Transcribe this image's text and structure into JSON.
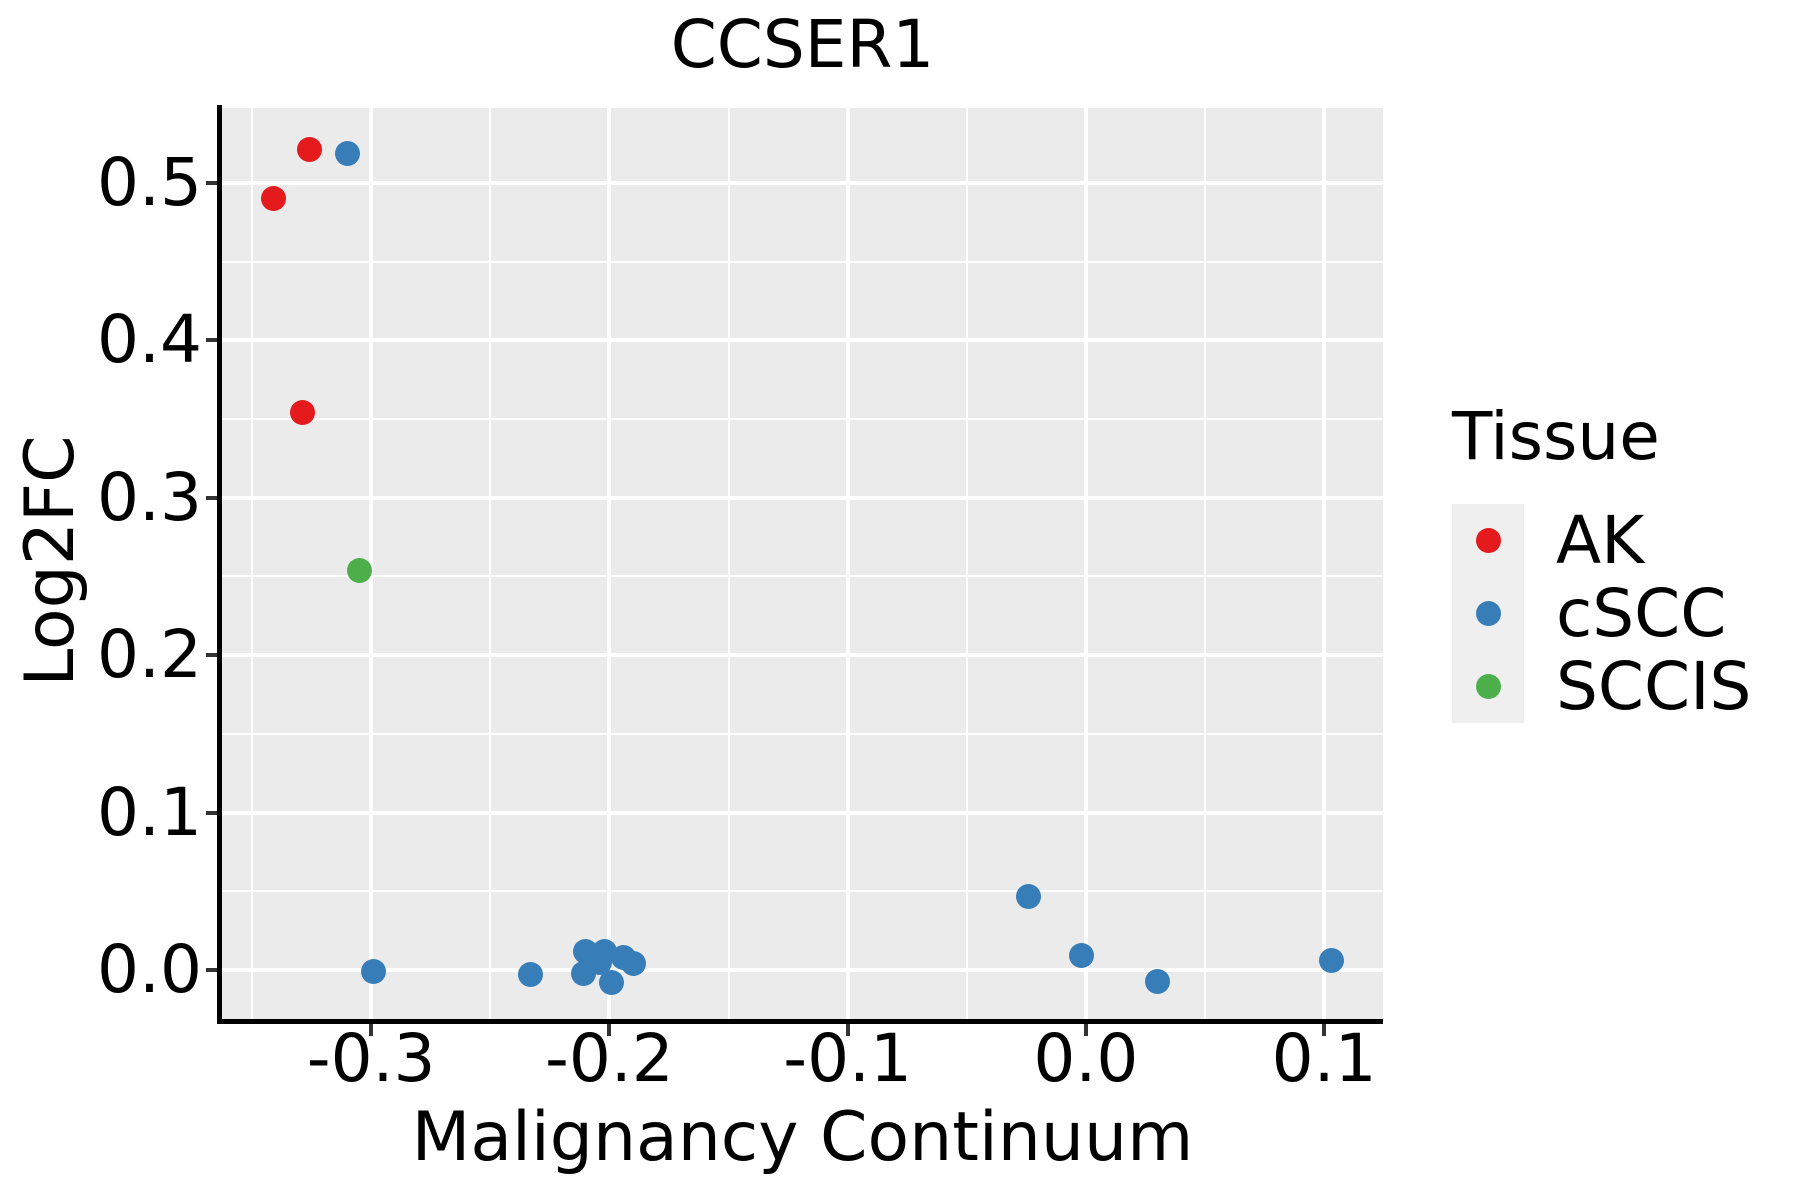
{
  "chart_data": {
    "type": "scatter",
    "title": "CCSER1",
    "xlabel": "Malignancy Continuum",
    "ylabel": "Log2FC",
    "grid": "on",
    "panel_background_color": "#EBEBEB",
    "gridline_color": "#FFFFFF",
    "axis_line_color": "#000000",
    "xlim": [
      -0.3626,
      0.1247
    ],
    "ylim": [
      -0.0311,
      0.5476
    ],
    "x_ticks": [
      {
        "label": "-0.3",
        "value": -0.3
      },
      {
        "label": "-0.2",
        "value": -0.2
      },
      {
        "label": "-0.1",
        "value": -0.1
      },
      {
        "label": "0.0",
        "value": 0.0
      },
      {
        "label": "0.1",
        "value": 0.1
      }
    ],
    "y_ticks": [
      {
        "label": "0.0",
        "value": 0.0
      },
      {
        "label": "0.1",
        "value": 0.1
      },
      {
        "label": "0.2",
        "value": 0.2
      },
      {
        "label": "0.3",
        "value": 0.3
      },
      {
        "label": "0.4",
        "value": 0.4
      },
      {
        "label": "0.5",
        "value": 0.5
      }
    ],
    "series": [
      {
        "name": "AK",
        "color": "#E41A1C",
        "points": [
          [
            -0.326,
            0.521
          ],
          [
            -0.341,
            0.49
          ],
          [
            -0.329,
            0.354
          ]
        ]
      },
      {
        "name": "cSCC",
        "color": "#377EB8",
        "points": [
          [
            -0.31,
            0.519
          ],
          [
            -0.299,
            -0.001
          ],
          [
            -0.233,
            -0.003
          ],
          [
            -0.211,
            -0.002
          ],
          [
            -0.21,
            0.012
          ],
          [
            -0.204,
            0.005
          ],
          [
            -0.202,
            0.012
          ],
          [
            -0.199,
            -0.008
          ],
          [
            -0.194,
            0.008
          ],
          [
            -0.19,
            0.004
          ],
          [
            -0.024,
            0.047
          ],
          [
            -0.002,
            0.009
          ],
          [
            0.03,
            -0.007
          ],
          [
            0.103,
            0.006
          ]
        ]
      },
      {
        "name": "SCCIS",
        "color": "#4DAF4A",
        "points": [
          [
            -0.305,
            0.254
          ]
        ]
      }
    ],
    "legend": {
      "title": "Tissue",
      "position": "right",
      "key_background_color": "#EFEFEF",
      "entries": [
        {
          "label": "AK",
          "color": "#E41A1C"
        },
        {
          "label": "cSCC",
          "color": "#377EB8"
        },
        {
          "label": "SCCIS",
          "color": "#4DAF4A"
        }
      ]
    }
  }
}
